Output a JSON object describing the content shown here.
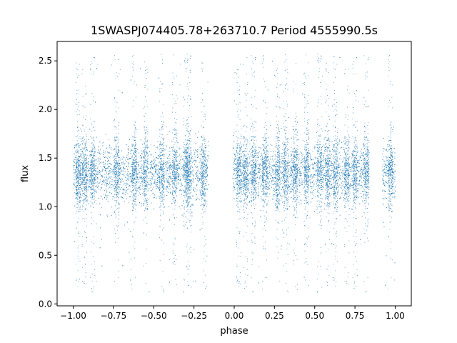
{
  "chart_data": {
    "type": "scatter",
    "title": "1SWASPJ074405.78+263710.7 Period 4555990.5s",
    "xlabel": "phase",
    "ylabel": "flux",
    "xlim": [
      -1.1,
      1.1
    ],
    "ylim": [
      -0.02,
      2.7
    ],
    "x_ticks": [
      -1.0,
      -0.75,
      -0.5,
      -0.25,
      0.0,
      0.25,
      0.5,
      0.75,
      1.0
    ],
    "x_tick_labels": [
      "−1.00",
      "−0.75",
      "−0.50",
      "−0.25",
      "0.00",
      "0.25",
      "0.50",
      "0.75",
      "1.00"
    ],
    "y_ticks": [
      0.0,
      0.5,
      1.0,
      1.5,
      2.0,
      2.5
    ],
    "y_tick_labels": [
      "0.0",
      "0.5",
      "1.0",
      "1.5",
      "2.0",
      "2.5"
    ],
    "grid": false,
    "marker_color": "#1f77b4",
    "phase_coverage_ranges": [
      [
        -1.0,
        -0.16
      ],
      [
        -0.01,
        0.84
      ],
      [
        0.92,
        1.0
      ]
    ],
    "flux_typical_range": [
      1.05,
      1.65
    ],
    "flux_median": 1.35,
    "flux_outlier_range": [
      0.12,
      2.57
    ],
    "dense_columns_phase": [
      -0.97,
      -0.93,
      -0.88,
      -0.73,
      -0.62,
      -0.55,
      -0.45,
      -0.37,
      -0.3,
      -0.28,
      -0.19,
      0.03,
      0.07,
      0.12,
      0.19,
      0.27,
      0.32,
      0.38,
      0.45,
      0.53,
      0.58,
      0.63,
      0.7,
      0.75,
      0.82,
      0.97
    ]
  }
}
